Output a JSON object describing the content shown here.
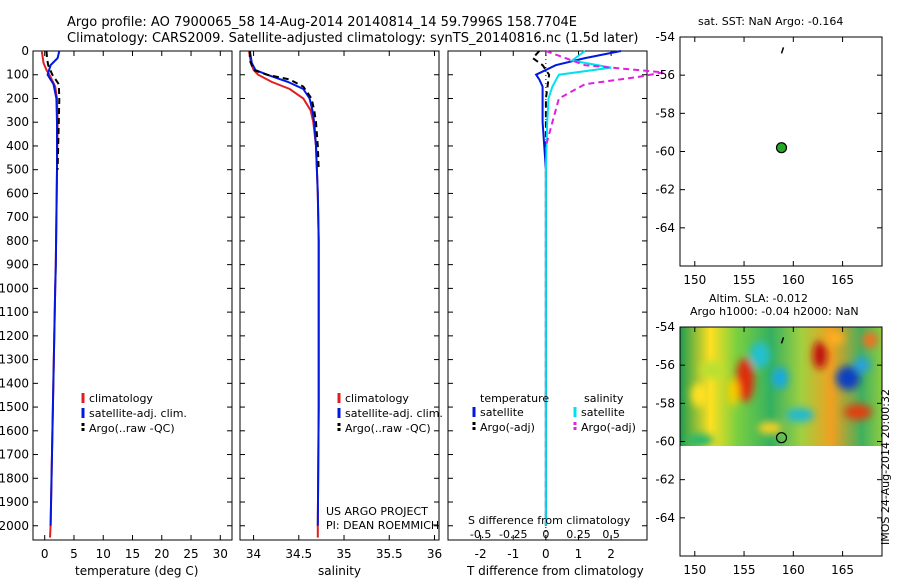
{
  "title_line1": "Argo profile: AO 7900065_58 14-Aug-2014 20140814_14 59.7996S 158.7704E",
  "title_line2": "Climatology: CARS2009. Satellite-adjusted climatology: synTS_20140816.nc (1.5d later)",
  "footer_stamp": "IMOS 24-Aug-2014 20:00:32",
  "colors": {
    "climatology": "#e02020",
    "satellite": "#0018e0",
    "argo": "#000000",
    "salinity_satellite": "#00e0f0",
    "salinity_argo_adj": "#e020e0",
    "argo_marker": "#22aa22"
  },
  "chart_data": [
    {
      "type": "line",
      "panel": "temperature",
      "xlabel": "temperature (deg C)",
      "ylabel": "",
      "xlim": [
        -2,
        32
      ],
      "ylim": [
        2060,
        0
      ],
      "xticks": [
        0,
        5,
        10,
        15,
        20,
        25,
        30
      ],
      "yticks": [
        0,
        100,
        200,
        300,
        400,
        500,
        600,
        700,
        800,
        900,
        1000,
        1100,
        1200,
        1300,
        1400,
        1500,
        1600,
        1700,
        1800,
        1900,
        2000
      ],
      "legend": [
        "climatology",
        "satellite-adj. clim.",
        "Argo(..raw -QC)"
      ],
      "series": [
        {
          "name": "climatology",
          "style": "solid",
          "color": "#e02020",
          "depth": [
            0,
            50,
            80,
            100,
            150,
            200,
            300,
            500,
            700,
            900,
            1000,
            1500,
            2000,
            2050
          ],
          "values": [
            -0.5,
            -0.2,
            0.3,
            0.8,
            1.8,
            2.1,
            2.2,
            2.1,
            2.0,
            1.9,
            1.8,
            1.4,
            1.0,
            0.9
          ]
        },
        {
          "name": "satellite-adj. clim.",
          "style": "solid",
          "color": "#0018e0",
          "depth": [
            0,
            30,
            60,
            100,
            140,
            200,
            300,
            500,
            700,
            900,
            1000,
            1500,
            2000
          ],
          "values": [
            2.5,
            2.2,
            1.0,
            0.5,
            1.5,
            2.0,
            2.1,
            2.1,
            2.0,
            1.9,
            1.8,
            1.4,
            1.0
          ]
        },
        {
          "name": "Argo(..raw -QC)",
          "style": "dashed",
          "color": "#000000",
          "depth": [
            0,
            30,
            60,
            100,
            140,
            200,
            300,
            400,
            500
          ],
          "values": [
            0.3,
            0.4,
            0.6,
            1.3,
            2.4,
            2.5,
            2.4,
            2.3,
            2.2
          ]
        }
      ]
    },
    {
      "type": "line",
      "panel": "salinity",
      "xlabel": "salinity",
      "xlim": [
        33.85,
        36.05
      ],
      "ylim": [
        2060,
        0
      ],
      "xticks": [
        34,
        34.5,
        35,
        35.5,
        36
      ],
      "legend": [
        "climatology",
        "satellite-adj. clim.",
        "Argo(..raw -QC)"
      ],
      "annotation": [
        "US ARGO PROJECT",
        "PI: DEAN ROEMMICH"
      ],
      "series": [
        {
          "name": "climatology",
          "style": "solid",
          "color": "#e02020",
          "depth": [
            0,
            50,
            80,
            100,
            130,
            160,
            200,
            250,
            300,
            400,
            600,
            800,
            1000,
            1500,
            2000,
            2050
          ],
          "values": [
            33.95,
            33.97,
            34.0,
            34.05,
            34.2,
            34.4,
            34.55,
            34.63,
            34.66,
            34.69,
            34.71,
            34.72,
            34.72,
            34.72,
            34.71,
            34.71
          ]
        },
        {
          "name": "satellite-adj. clim.",
          "style": "solid",
          "color": "#0018e0",
          "depth": [
            0,
            50,
            80,
            100,
            130,
            160,
            200,
            250,
            300,
            400,
            600,
            800,
            1000,
            1500,
            2000
          ],
          "values": [
            33.96,
            33.98,
            34.02,
            34.15,
            34.38,
            34.55,
            34.62,
            34.65,
            34.67,
            34.69,
            34.71,
            34.72,
            34.72,
            34.72,
            34.71
          ]
        },
        {
          "name": "Argo(..raw -QC)",
          "style": "dashed",
          "color": "#000000",
          "depth": [
            0,
            40,
            80,
            100,
            120,
            150,
            200,
            250,
            300,
            400,
            500
          ],
          "values": [
            33.96,
            33.96,
            34.0,
            34.15,
            34.4,
            34.55,
            34.64,
            34.67,
            34.69,
            34.71,
            34.72
          ]
        }
      ]
    },
    {
      "type": "line",
      "panel": "difference",
      "xlabel": "T difference from climatology",
      "xlabel_top": "S difference from climatology",
      "xlim": [
        -3.0,
        3.1
      ],
      "ylim": [
        2060,
        0
      ],
      "xticks": [
        -2,
        -1,
        0,
        1,
        2
      ],
      "xticks_s": [
        -0.5,
        -0.25,
        0,
        0.25,
        0.5
      ],
      "legend_headers": [
        "temperature",
        "salinity"
      ],
      "legend": [
        "satellite",
        "Argo(-adj)",
        "satellite",
        "Argo(-adj)"
      ],
      "series": [
        {
          "name": "satellite",
          "group": "temperature",
          "style": "solid",
          "color": "#0018e0",
          "depth": [
            0,
            30,
            60,
            100,
            120,
            150,
            200,
            300,
            500,
            1000,
            1500,
            2000
          ],
          "values": [
            2.3,
            1.2,
            0.3,
            -0.3,
            -0.2,
            -0.1,
            -0.1,
            -0.1,
            0,
            0,
            0,
            0
          ]
        },
        {
          "name": "Argo(-adj)",
          "group": "temperature",
          "style": "dashed",
          "color": "#000000",
          "depth": [
            0,
            30,
            60,
            100,
            150,
            200,
            300,
            500,
            1000,
            1500,
            2000
          ],
          "values": [
            -0.2,
            -0.4,
            -0.1,
            0.1,
            0.05,
            0,
            0,
            0,
            0,
            0,
            0
          ]
        },
        {
          "name": "satellite",
          "group": "salinity",
          "style": "solid",
          "color": "#00e0f0",
          "depth": [
            0,
            40,
            70,
            100,
            150,
            200,
            300,
            500,
            1000,
            1500,
            2000
          ],
          "values": [
            0.3,
            0.2,
            0.5,
            0.1,
            0.05,
            0.02,
            0.01,
            0,
            0,
            0,
            0
          ]
        },
        {
          "name": "Argo(-adj)",
          "group": "salinity",
          "style": "dashed",
          "color": "#e020e0",
          "depth": [
            0,
            60,
            90,
            110,
            140,
            200,
            300,
            400
          ],
          "values": [
            0,
            0.3,
            0.9,
            0.7,
            0.3,
            0.1,
            0.05,
            0
          ]
        }
      ]
    },
    {
      "type": "scatter",
      "panel": "sat-sst-map",
      "title": "sat. SST: NaN Argo: -0.164",
      "xlim": [
        148.5,
        169
      ],
      "ylim": [
        -66,
        -54
      ],
      "xticks": [
        150,
        155,
        160,
        165
      ],
      "yticks": [
        -54,
        -56,
        -58,
        -60,
        -62,
        -64
      ],
      "points": [
        {
          "x": 158.8,
          "y": -59.8
        }
      ],
      "tick_mark": {
        "x": 158.9,
        "y": -54.7
      }
    },
    {
      "type": "heatmap",
      "panel": "altimetry-map",
      "title_line1": "Altim. SLA: -0.012",
      "title_line2": "Argo h1000: -0.04 h2000: NaN",
      "xlim": [
        148.5,
        169
      ],
      "ylim": [
        -66,
        -54
      ],
      "xticks": [
        150,
        155,
        160,
        165
      ],
      "yticks": [
        -54,
        -56,
        -58,
        -60,
        -62,
        -64
      ],
      "heatmap_extent": {
        "lon": [
          148.5,
          169
        ],
        "lat": [
          -60.2,
          -54
        ]
      },
      "points": [
        {
          "x": 158.8,
          "y": -59.8
        }
      ],
      "tick_mark": {
        "x": 158.9,
        "y": -54.7
      }
    }
  ]
}
